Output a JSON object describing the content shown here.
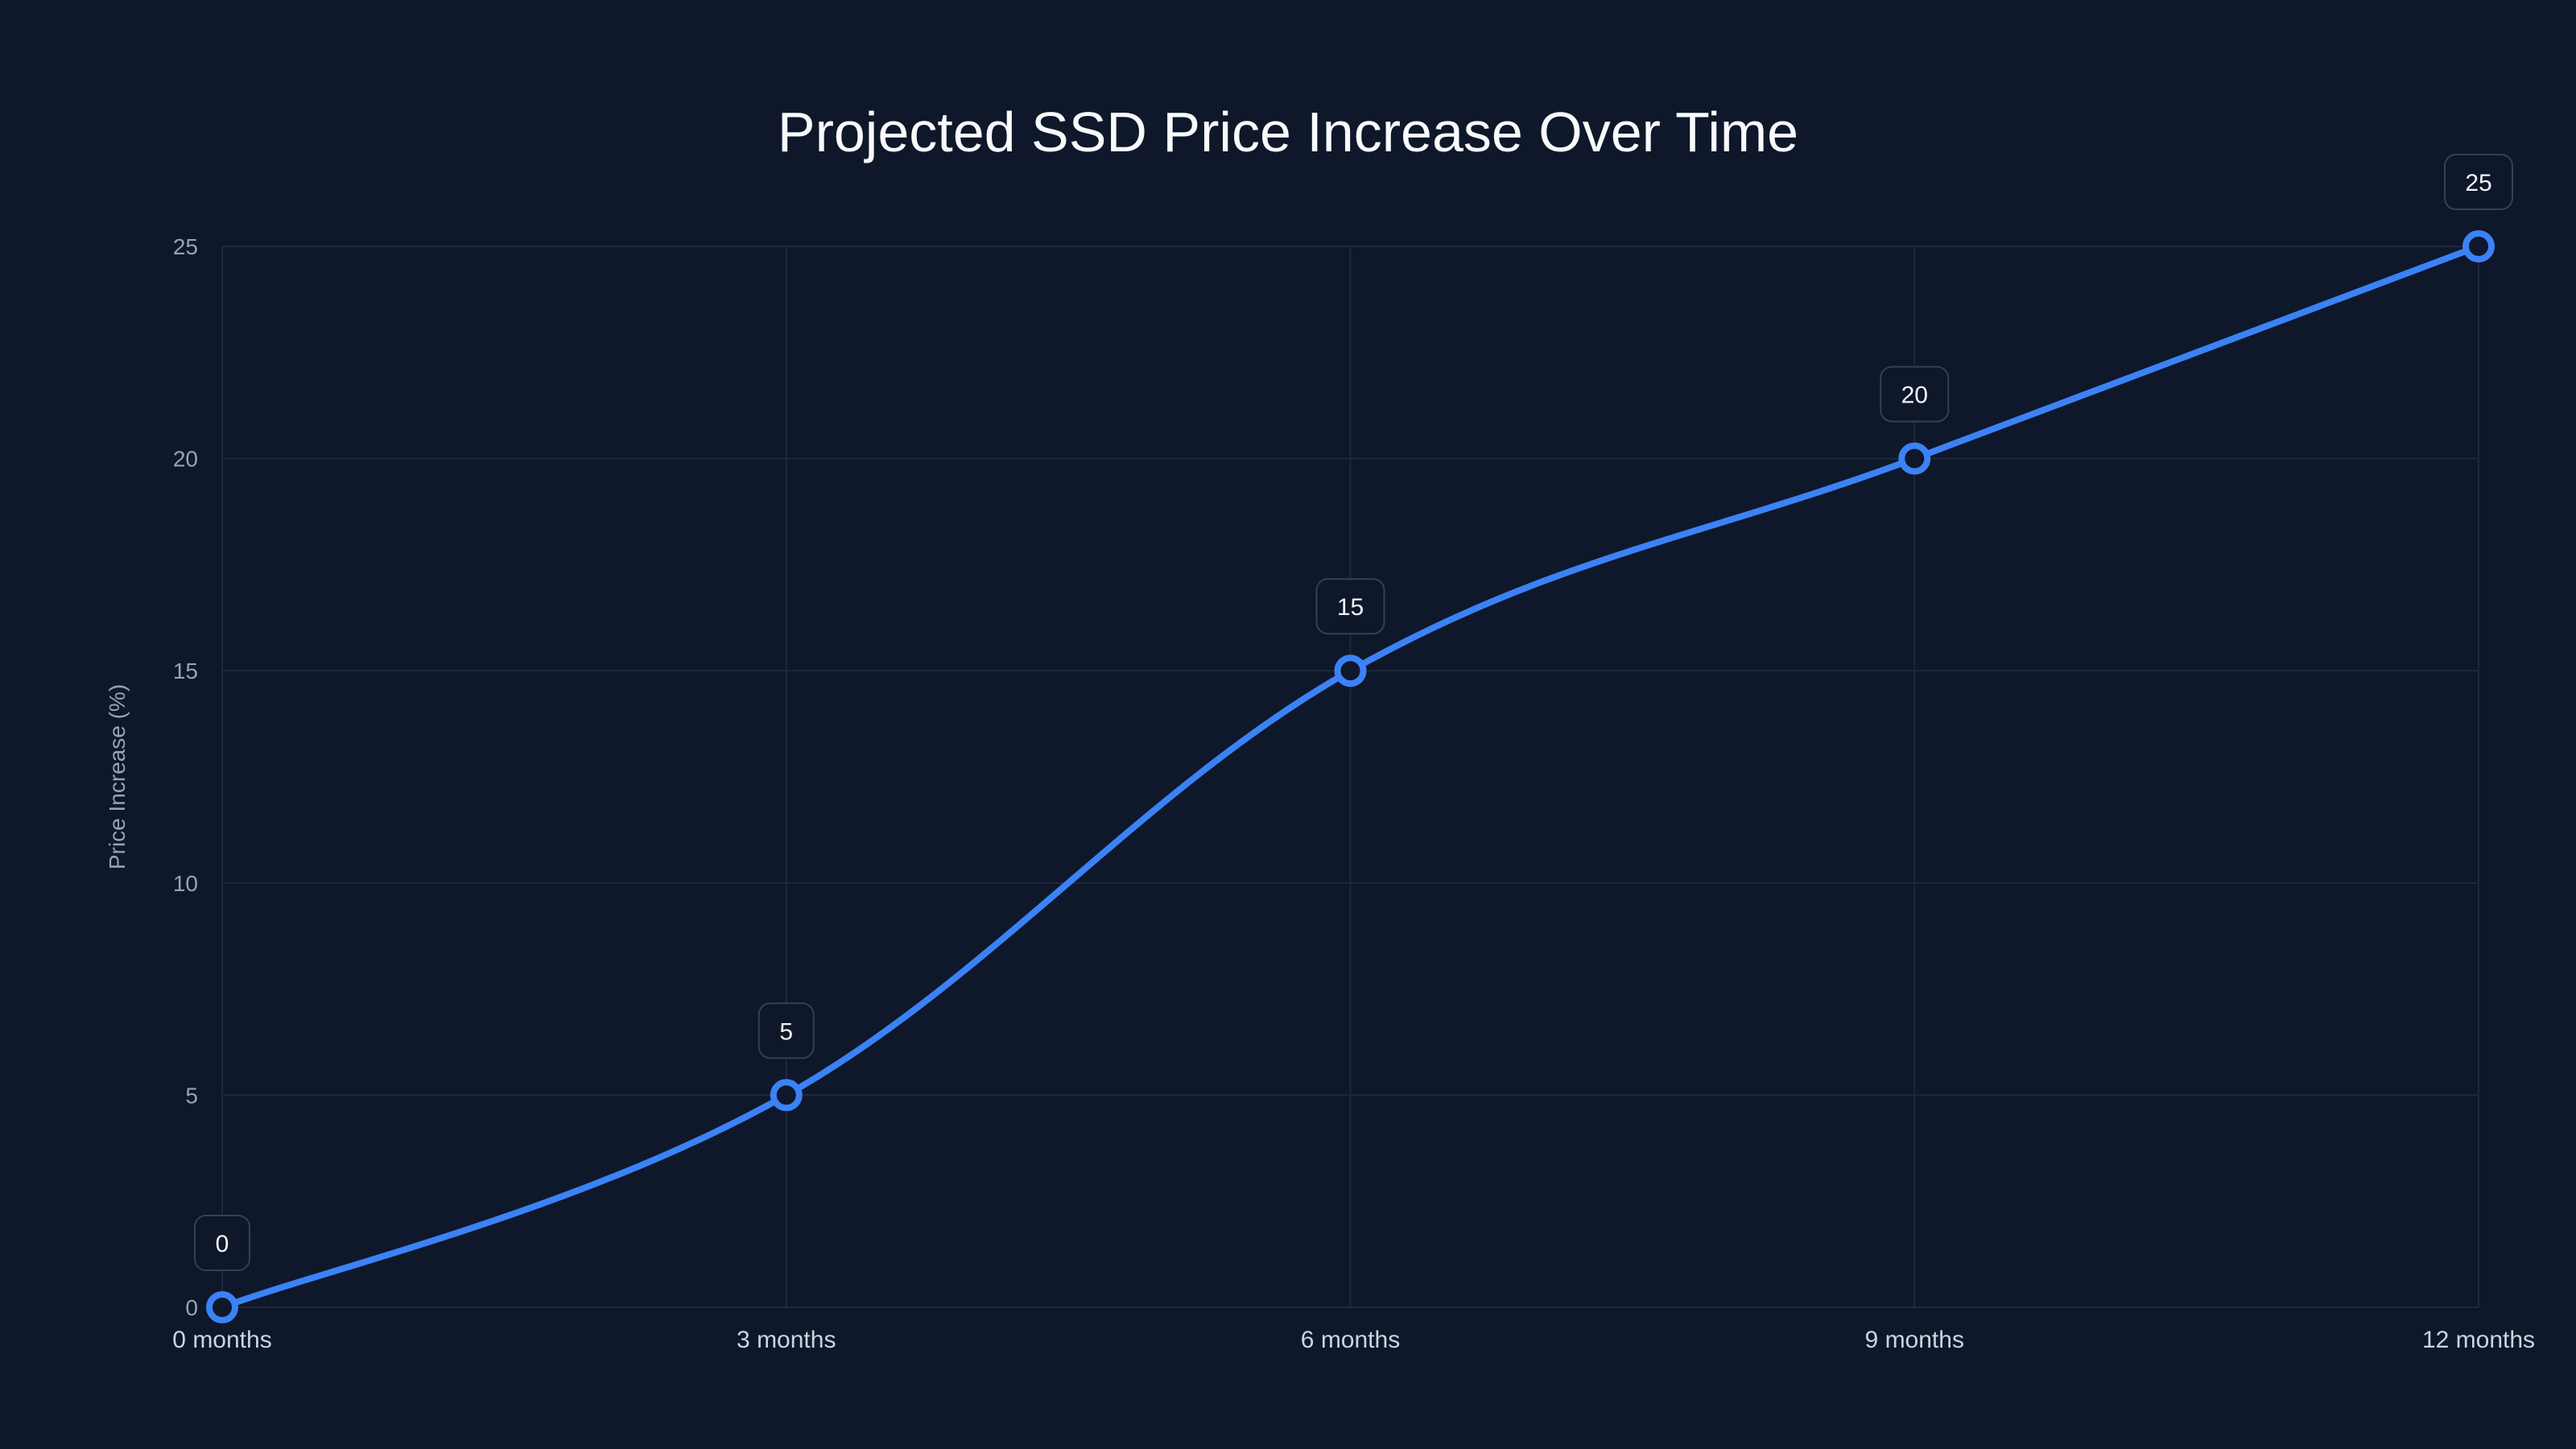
{
  "chart_data": {
    "type": "line",
    "title": "Projected SSD Price Increase Over Time",
    "xlabel": "",
    "ylabel": "Price Increase (%)",
    "categories": [
      "0 months",
      "3 months",
      "6 months",
      "9 months",
      "12 months"
    ],
    "series": [
      {
        "name": "Price Increase (%)",
        "values": [
          0,
          5,
          15,
          20,
          25
        ]
      }
    ],
    "ylim": [
      0,
      25
    ],
    "yticks": [
      0,
      5,
      10,
      15,
      20,
      25
    ],
    "grid": true,
    "data_labels": true,
    "line_color": "#3b82f6",
    "background": "#0f172a"
  }
}
